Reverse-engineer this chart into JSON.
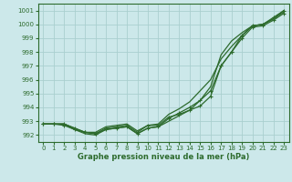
{
  "title": "Graphe pression niveau de la mer (hPa)",
  "bg_color": "#cce8ea",
  "grid_color": "#aacfcf",
  "line_color": "#2d6b2d",
  "ylim": [
    991.5,
    1001.5
  ],
  "xlim": [
    -0.5,
    23.5
  ],
  "yticks": [
    992,
    993,
    994,
    995,
    996,
    997,
    998,
    999,
    1000,
    1001
  ],
  "xticks": [
    0,
    1,
    2,
    3,
    4,
    5,
    6,
    7,
    8,
    9,
    10,
    11,
    12,
    13,
    14,
    15,
    16,
    17,
    18,
    19,
    20,
    21,
    22,
    23
  ],
  "series": [
    {
      "y": [
        992.8,
        992.8,
        992.8,
        992.5,
        992.2,
        992.1,
        992.5,
        992.6,
        992.7,
        992.2,
        992.7,
        992.7,
        993.3,
        993.5,
        993.8,
        994.1,
        994.8,
        997.0,
        998.0,
        999.2,
        999.9,
        1000.0,
        1000.5,
        1001.0
      ],
      "marker": true
    },
    {
      "y": [
        992.8,
        992.8,
        992.8,
        992.4,
        992.1,
        992.0,
        992.4,
        992.5,
        992.6,
        992.1,
        992.5,
        992.6,
        993.0,
        993.4,
        993.8,
        994.5,
        995.5,
        997.8,
        998.8,
        999.4,
        999.9,
        1000.0,
        1000.4,
        1000.9
      ],
      "marker": false
    },
    {
      "y": [
        992.8,
        992.8,
        992.8,
        992.5,
        992.2,
        992.2,
        992.6,
        992.7,
        992.8,
        992.3,
        992.7,
        992.8,
        993.5,
        993.9,
        994.4,
        995.2,
        996.0,
        997.5,
        998.4,
        999.2,
        999.9,
        1000.0,
        1000.4,
        1001.0
      ],
      "marker": false
    },
    {
      "y": [
        992.8,
        992.8,
        992.7,
        992.4,
        992.2,
        992.1,
        992.4,
        992.5,
        992.6,
        992.1,
        992.5,
        992.6,
        993.2,
        993.6,
        994.0,
        994.5,
        995.2,
        997.0,
        998.0,
        999.0,
        999.8,
        999.9,
        1000.3,
        1000.8
      ],
      "marker": true
    }
  ]
}
